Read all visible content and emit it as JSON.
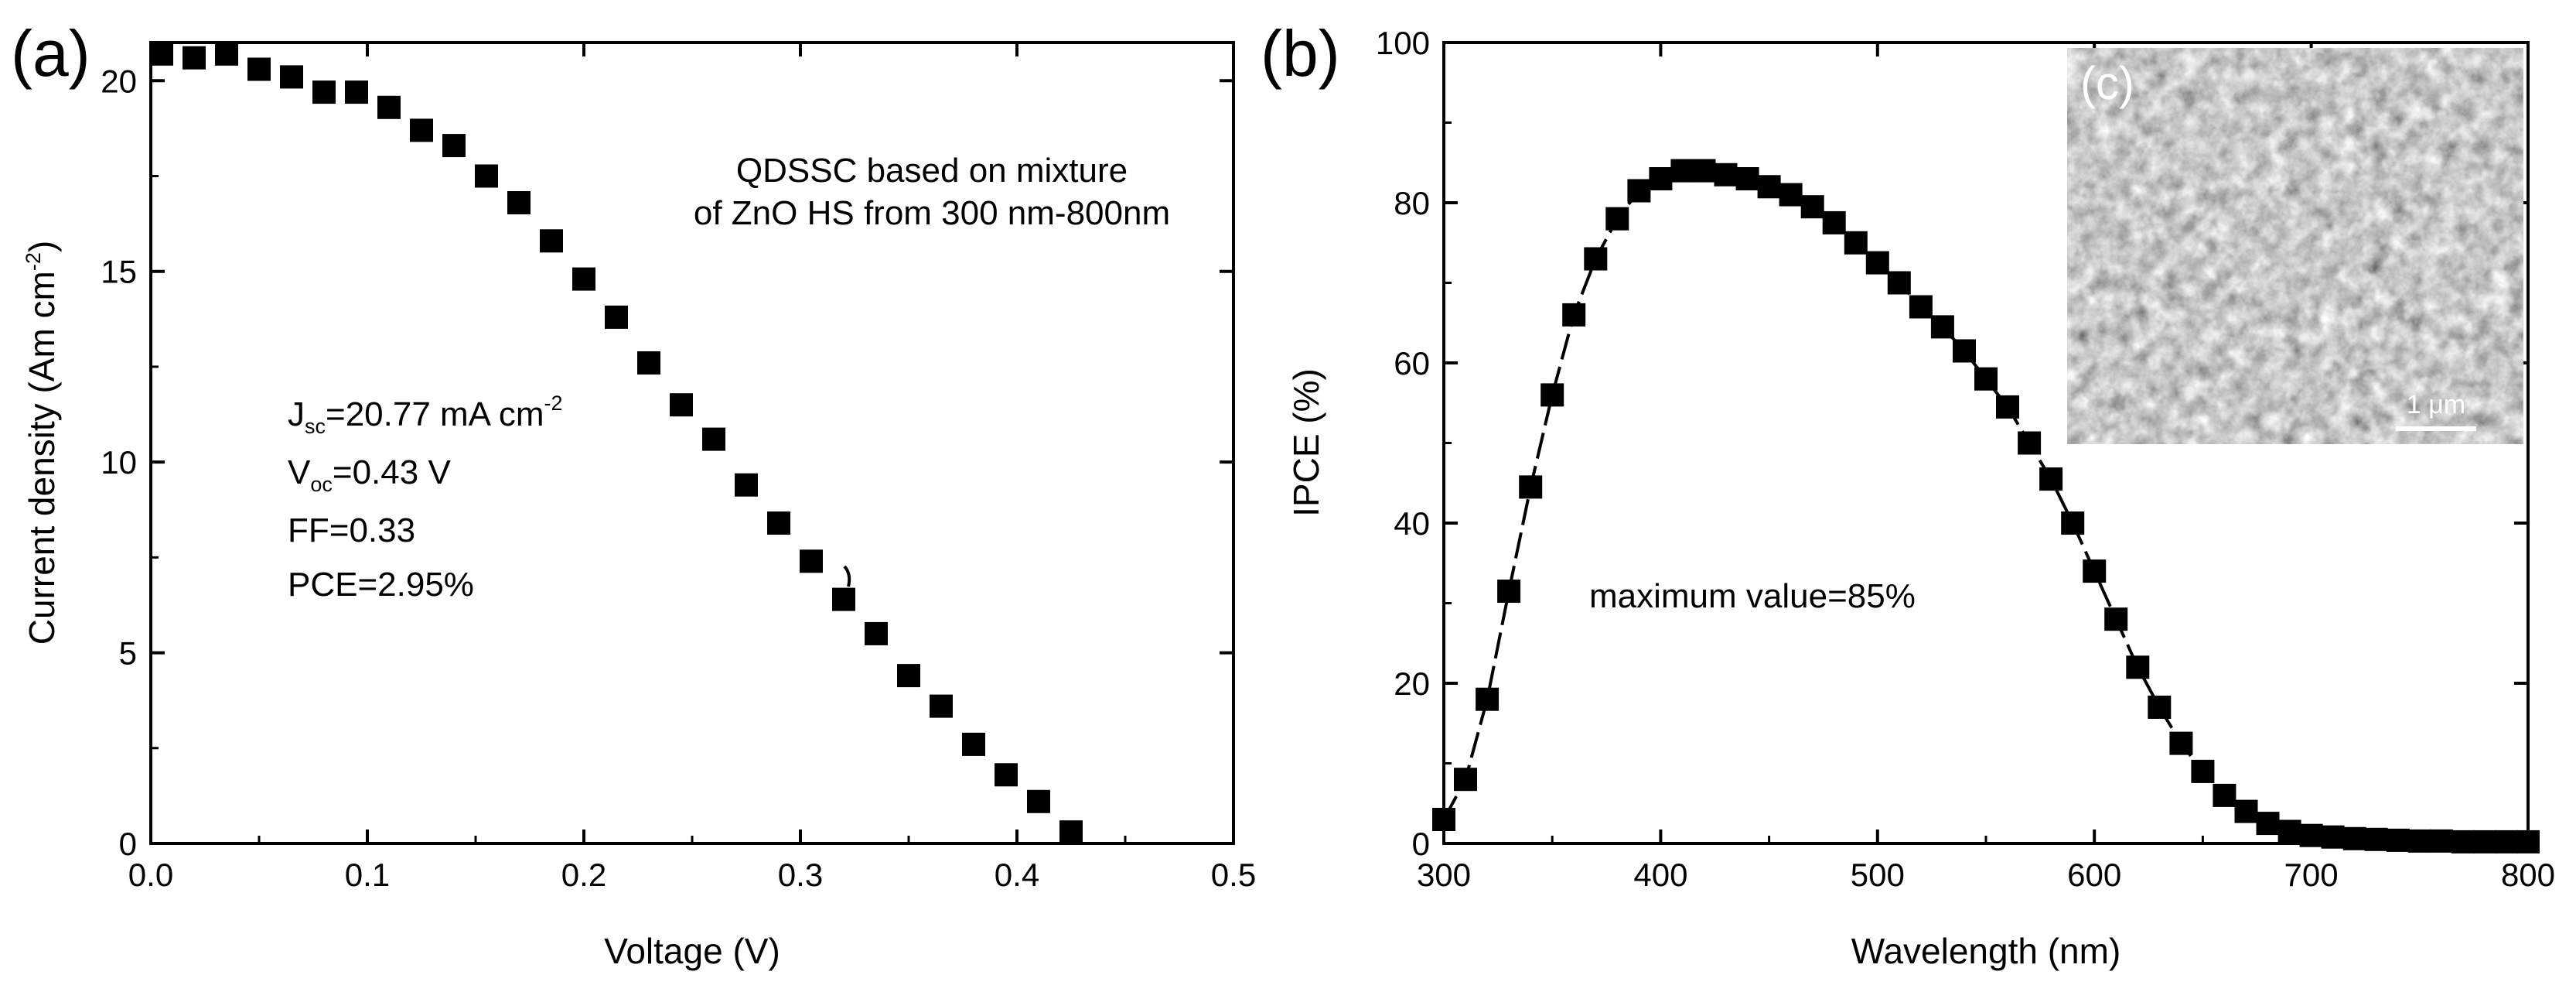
{
  "colors": {
    "ink": "#000000",
    "background": "#ffffff",
    "inset_text": "#ffffff"
  },
  "chart_data": [
    {
      "panel": "(a)",
      "type": "scatter",
      "marker": "square",
      "title": "",
      "xlabel": "Voltage (V)",
      "ylabel_main": "Current density (Am cm",
      "ylabel_sup": "-2",
      "ylabel_end": ")",
      "ylabel_full": "Current density (Am cm-2)",
      "xlim": [
        0.0,
        0.5
      ],
      "ylim": [
        0,
        21
      ],
      "xticks": [
        "0.0",
        "0.1",
        "0.2",
        "0.3",
        "0.4",
        "0.5"
      ],
      "yticks": [
        "0",
        "5",
        "10",
        "15",
        "20"
      ],
      "x": [
        0.005,
        0.02,
        0.035,
        0.05,
        0.065,
        0.08,
        0.095,
        0.11,
        0.125,
        0.14,
        0.155,
        0.17,
        0.185,
        0.2,
        0.215,
        0.23,
        0.245,
        0.26,
        0.275,
        0.29,
        0.305,
        0.32,
        0.335,
        0.35,
        0.365,
        0.38,
        0.395,
        0.41,
        0.425
      ],
      "y": [
        20.7,
        20.6,
        20.7,
        20.3,
        20.1,
        19.7,
        19.7,
        19.3,
        18.7,
        18.3,
        17.5,
        16.8,
        15.8,
        14.8,
        13.8,
        12.6,
        11.5,
        10.6,
        9.4,
        8.4,
        7.4,
        6.4,
        5.5,
        4.4,
        3.6,
        2.6,
        1.8,
        1.1,
        0.3
      ],
      "annotation_title_line1": "QDSSC based on mixture",
      "annotation_title_line2": "of ZnO HS from 300 nm-800nm",
      "params": {
        "jsc_prefix": "J",
        "jsc_sub": "sc",
        "jsc_value": "=20.77 mA cm",
        "jsc_sup": "-2",
        "voc_prefix": "V",
        "voc_sub": "oc",
        "voc_value": "=0.43 V",
        "ff": "FF=0.33",
        "pce": "PCE=2.95%"
      }
    },
    {
      "panel": "(b)",
      "type": "line",
      "marker": "square",
      "title": "",
      "xlabel": "Wavelength (nm)",
      "ylabel": "IPCE (%)",
      "xlim": [
        300,
        800
      ],
      "ylim": [
        0,
        100
      ],
      "xticks": [
        "300",
        "400",
        "500",
        "600",
        "700",
        "800"
      ],
      "yticks": [
        "0",
        "20",
        "40",
        "60",
        "80",
        "100"
      ],
      "x": [
        300,
        310,
        320,
        330,
        340,
        350,
        360,
        370,
        380,
        390,
        400,
        410,
        420,
        430,
        440,
        450,
        460,
        470,
        480,
        490,
        500,
        510,
        520,
        530,
        540,
        550,
        560,
        570,
        580,
        590,
        600,
        610,
        620,
        630,
        640,
        650,
        660,
        670,
        680,
        690,
        700,
        710,
        720,
        730,
        740,
        750,
        760,
        770,
        780,
        790,
        800
      ],
      "y": [
        3,
        8,
        18,
        31.5,
        44.5,
        56,
        66,
        73,
        78,
        81.5,
        83,
        84,
        84,
        83.5,
        83,
        82,
        81,
        79.5,
        77.5,
        75,
        72.5,
        70,
        67,
        64.5,
        61.5,
        58,
        54.5,
        50,
        45.5,
        40,
        34,
        28,
        22,
        17,
        12.5,
        9,
        6,
        4,
        2.5,
        1.5,
        1,
        0.8,
        0.6,
        0.5,
        0.4,
        0.3,
        0.3,
        0.2,
        0.2,
        0.2,
        0.2
      ],
      "annotation": "maximum value=85%"
    }
  ],
  "inset": {
    "label": "(c)",
    "scale_bar_label": "1 μm",
    "description_icon": "sem-micrograph-image"
  }
}
